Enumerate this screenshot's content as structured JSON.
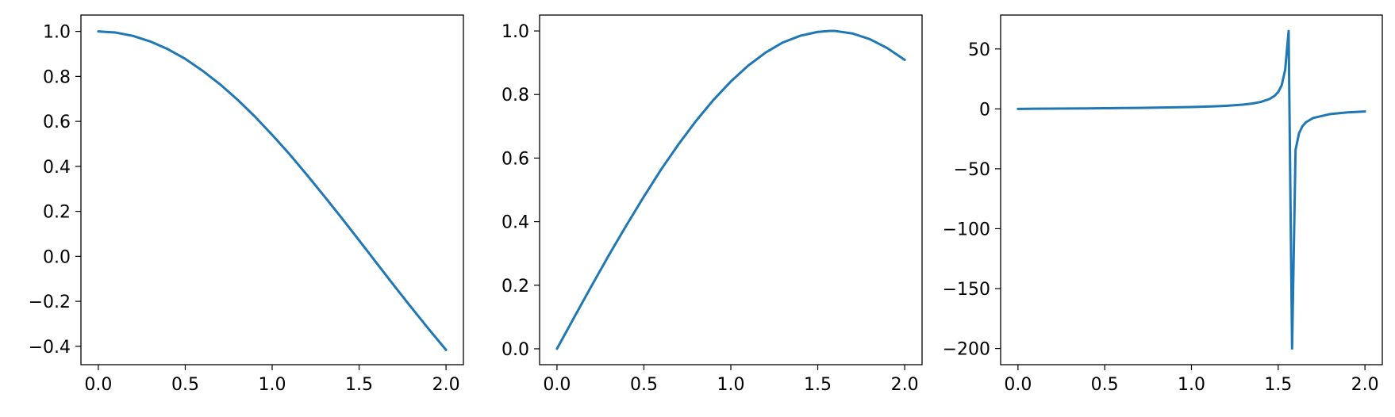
{
  "figure": {
    "background": "#ffffff",
    "line_color": "#1f77b4"
  },
  "chart_data": [
    {
      "type": "line",
      "title": "",
      "xlabel": "",
      "ylabel": "",
      "xlim": [
        -0.1,
        2.1
      ],
      "ylim": [
        -0.4817,
        1.0727
      ],
      "x_ticks": [
        0.0,
        0.5,
        1.0,
        1.5,
        2.0
      ],
      "x_tick_labels": [
        "0.0",
        "0.5",
        "1.0",
        "1.5",
        "2.0"
      ],
      "y_ticks": [
        -0.4,
        -0.2,
        0.0,
        0.2,
        0.4,
        0.6,
        0.8,
        1.0
      ],
      "y_tick_labels": [
        "−0.4",
        "−0.2",
        "0.0",
        "0.2",
        "0.4",
        "0.6",
        "0.8",
        "1.0"
      ],
      "grid": false,
      "series": [
        {
          "color": "#1f77b4",
          "x": [
            0.0,
            0.1,
            0.2,
            0.3,
            0.4,
            0.5,
            0.6,
            0.7,
            0.8,
            0.9,
            1.0,
            1.1,
            1.2,
            1.3,
            1.4,
            1.5,
            1.6,
            1.7,
            1.8,
            1.9,
            2.0
          ],
          "y": [
            1.0,
            0.995,
            0.98,
            0.955,
            0.921,
            0.878,
            0.825,
            0.765,
            0.697,
            0.622,
            0.54,
            0.454,
            0.362,
            0.267,
            0.17,
            0.071,
            -0.029,
            -0.129,
            -0.227,
            -0.323,
            -0.416
          ]
        }
      ]
    },
    {
      "type": "line",
      "title": "",
      "xlabel": "",
      "ylabel": "",
      "xlim": [
        -0.1,
        2.1
      ],
      "ylim": [
        -0.05,
        1.05
      ],
      "x_ticks": [
        0.0,
        0.5,
        1.0,
        1.5,
        2.0
      ],
      "x_tick_labels": [
        "0.0",
        "0.5",
        "1.0",
        "1.5",
        "2.0"
      ],
      "y_ticks": [
        0.0,
        0.2,
        0.4,
        0.6,
        0.8,
        1.0
      ],
      "y_tick_labels": [
        "0.0",
        "0.2",
        "0.4",
        "0.6",
        "0.8",
        "1.0"
      ],
      "grid": false,
      "series": [
        {
          "color": "#1f77b4",
          "x": [
            0.0,
            0.1,
            0.2,
            0.3,
            0.4,
            0.5,
            0.6,
            0.7,
            0.8,
            0.9,
            1.0,
            1.1,
            1.2,
            1.3,
            1.4,
            1.5,
            1.57,
            1.6,
            1.7,
            1.8,
            1.9,
            2.0
          ],
          "y": [
            0.0,
            0.1,
            0.199,
            0.296,
            0.389,
            0.479,
            0.565,
            0.644,
            0.717,
            0.783,
            0.841,
            0.891,
            0.932,
            0.964,
            0.985,
            0.997,
            1.0,
            1.0,
            0.992,
            0.974,
            0.946,
            0.909
          ]
        }
      ]
    },
    {
      "type": "line",
      "title": "",
      "xlabel": "",
      "ylabel": "",
      "xlim": [
        -0.1,
        2.1
      ],
      "ylim": [
        -213.5,
        78.3
      ],
      "x_ticks": [
        0.0,
        0.5,
        1.0,
        1.5,
        2.0
      ],
      "x_tick_labels": [
        "0.0",
        "0.5",
        "1.0",
        "1.5",
        "2.0"
      ],
      "y_ticks": [
        -200,
        -150,
        -100,
        -50,
        0,
        50
      ],
      "y_tick_labels": [
        "−200",
        "−150",
        "−100",
        "−50",
        "0",
        "50"
      ],
      "grid": false,
      "series": [
        {
          "color": "#1f77b4",
          "x": [
            0.0,
            0.1,
            0.2,
            0.3,
            0.4,
            0.5,
            0.6,
            0.7,
            0.8,
            0.9,
            1.0,
            1.1,
            1.2,
            1.3,
            1.35,
            1.4,
            1.45,
            1.48,
            1.5,
            1.52,
            1.54,
            1.56,
            1.58,
            1.6,
            1.62,
            1.64,
            1.66,
            1.7,
            1.8,
            1.9,
            2.0
          ],
          "y": [
            0.0,
            0.1,
            0.2,
            0.31,
            0.42,
            0.55,
            0.68,
            0.84,
            1.03,
            1.26,
            1.56,
            1.96,
            2.57,
            3.6,
            4.46,
            5.8,
            8.24,
            11.0,
            14.1,
            19.7,
            32.5,
            65.0,
            -200.0,
            -34.2,
            -20.3,
            -14.4,
            -11.2,
            -7.7,
            -4.3,
            -2.9,
            -2.2
          ]
        }
      ]
    }
  ]
}
